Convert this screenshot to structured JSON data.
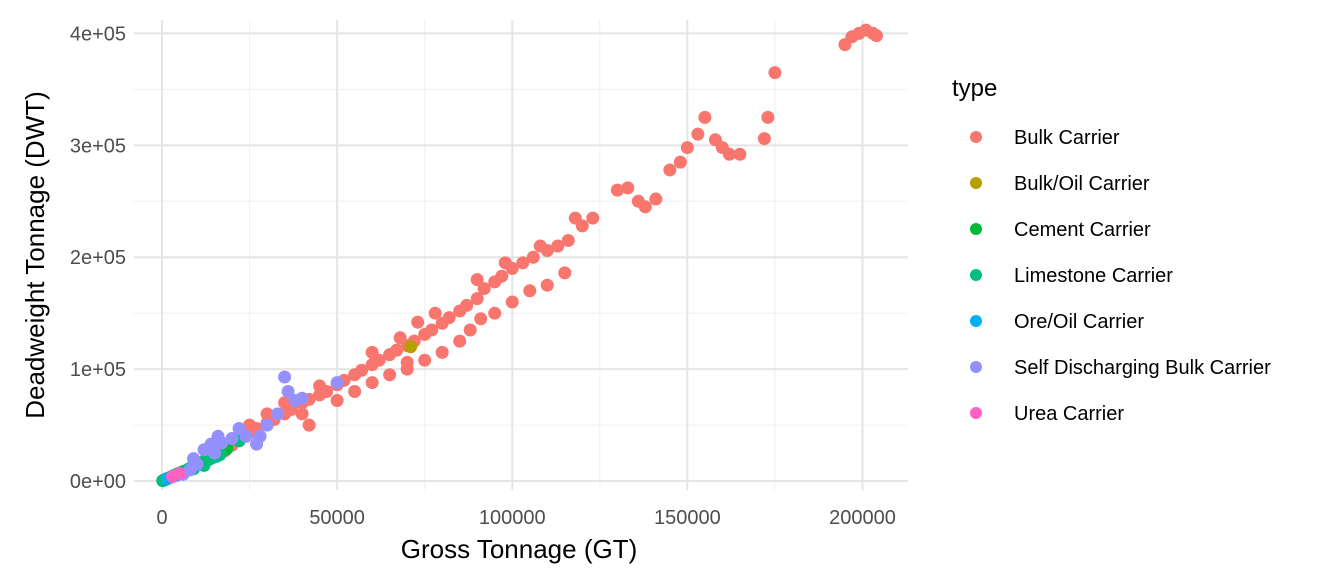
{
  "chart_data": {
    "type": "scatter",
    "title": "",
    "xlabel": "Gross Tonnage (GT)",
    "ylabel": "Deadweight Tonnage (DWT)",
    "xlim": [
      -8000,
      213000
    ],
    "ylim": [
      -8000,
      412000
    ],
    "x_ticks": [
      0,
      50000,
      100000,
      150000,
      200000
    ],
    "x_tick_labels": [
      "0",
      "50000",
      "100000",
      "150000",
      "200000"
    ],
    "y_ticks": [
      0,
      100000,
      200000,
      300000,
      400000
    ],
    "y_tick_labels": [
      "0e+00",
      "1e+05",
      "2e+05",
      "3e+05",
      "4e+05"
    ],
    "grid": true,
    "legend": {
      "title": "type",
      "position": "right"
    },
    "series": [
      {
        "name": "Bulk Carrier",
        "color": "#F8766D",
        "points": [
          [
            500,
            800
          ],
          [
            2000,
            2800
          ],
          [
            4000,
            5500
          ],
          [
            6000,
            8500
          ],
          [
            8000,
            11000
          ],
          [
            10000,
            14500
          ],
          [
            12000,
            18000
          ],
          [
            15000,
            22000
          ],
          [
            18000,
            27000
          ],
          [
            20000,
            32000
          ],
          [
            22000,
            36000
          ],
          [
            25000,
            43000
          ],
          [
            27000,
            47000
          ],
          [
            30000,
            52000
          ],
          [
            32000,
            55000
          ],
          [
            35000,
            60000
          ],
          [
            37000,
            64000
          ],
          [
            40000,
            70000
          ],
          [
            42000,
            73000
          ],
          [
            45000,
            77000
          ],
          [
            47000,
            80000
          ],
          [
            50000,
            86000
          ],
          [
            52000,
            90000
          ],
          [
            55000,
            95000
          ],
          [
            57000,
            99000
          ],
          [
            60000,
            104000
          ],
          [
            62000,
            108000
          ],
          [
            65000,
            113000
          ],
          [
            67000,
            117000
          ],
          [
            70000,
            121000
          ],
          [
            72000,
            125000
          ],
          [
            75000,
            131000
          ],
          [
            77000,
            135000
          ],
          [
            80000,
            141000
          ],
          [
            82000,
            146000
          ],
          [
            85000,
            152000
          ],
          [
            87000,
            157000
          ],
          [
            90000,
            163000
          ],
          [
            92000,
            172000
          ],
          [
            95000,
            178000
          ],
          [
            97000,
            183000
          ],
          [
            100000,
            190000
          ],
          [
            103000,
            195000
          ],
          [
            106000,
            200000
          ],
          [
            110000,
            206000
          ],
          [
            113000,
            210000
          ],
          [
            116000,
            215000
          ],
          [
            120000,
            228000
          ],
          [
            123000,
            235000
          ],
          [
            130000,
            260000
          ],
          [
            133000,
            262000
          ],
          [
            136000,
            250000
          ],
          [
            138000,
            245000
          ],
          [
            141000,
            252000
          ],
          [
            145000,
            278000
          ],
          [
            148000,
            285000
          ],
          [
            150000,
            298000
          ],
          [
            153000,
            310000
          ],
          [
            155000,
            325000
          ],
          [
            158000,
            305000
          ],
          [
            160000,
            298000
          ],
          [
            162000,
            292000
          ],
          [
            165000,
            292000
          ],
          [
            172000,
            306000
          ],
          [
            173000,
            325000
          ],
          [
            175000,
            365000
          ],
          [
            195000,
            390000
          ],
          [
            197000,
            397000
          ],
          [
            199000,
            400000
          ],
          [
            201000,
            403000
          ],
          [
            203000,
            400000
          ],
          [
            204000,
            398000
          ],
          [
            30000,
            60000
          ],
          [
            40000,
            60000
          ],
          [
            42000,
            50000
          ],
          [
            50000,
            72000
          ],
          [
            55000,
            80000
          ],
          [
            60000,
            88000
          ],
          [
            65000,
            95000
          ],
          [
            70000,
            100000
          ],
          [
            75000,
            108000
          ],
          [
            80000,
            115000
          ],
          [
            85000,
            125000
          ],
          [
            88000,
            135000
          ],
          [
            91000,
            145000
          ],
          [
            95000,
            150000
          ],
          [
            100000,
            160000
          ],
          [
            105000,
            170000
          ],
          [
            110000,
            175000
          ],
          [
            115000,
            186000
          ],
          [
            73000,
            142000
          ],
          [
            78000,
            150000
          ],
          [
            90000,
            180000
          ],
          [
            98000,
            195000
          ],
          [
            108000,
            210000
          ],
          [
            118000,
            235000
          ],
          [
            20000,
            38000
          ],
          [
            25000,
            50000
          ],
          [
            35000,
            70000
          ],
          [
            45000,
            85000
          ],
          [
            60000,
            115000
          ],
          [
            70000,
            106000
          ],
          [
            68000,
            128000
          ]
        ]
      },
      {
        "name": "Bulk/Oil Carrier",
        "color": "#B79F00",
        "points": [
          [
            71000,
            120000
          ],
          [
            12000,
            18000
          ],
          [
            3000,
            4500
          ]
        ]
      },
      {
        "name": "Cement Carrier",
        "color": "#00BA38",
        "points": [
          [
            1000,
            1500
          ],
          [
            3000,
            4000
          ],
          [
            5000,
            7000
          ],
          [
            8000,
            11000
          ],
          [
            12000,
            17000
          ],
          [
            15000,
            22000
          ],
          [
            17000,
            26000
          ],
          [
            18500,
            29000
          ]
        ]
      },
      {
        "name": "Limestone Carrier",
        "color": "#00BF7D",
        "points": [
          [
            200,
            300
          ],
          [
            800,
            1200
          ],
          [
            1500,
            2200
          ],
          [
            2500,
            3500
          ],
          [
            3500,
            5000
          ],
          [
            4500,
            6500
          ],
          [
            5500,
            7500
          ],
          [
            6500,
            9000
          ],
          [
            7500,
            10500
          ],
          [
            8500,
            12000
          ],
          [
            9500,
            13500
          ],
          [
            10500,
            15000
          ],
          [
            11500,
            16500
          ],
          [
            12500,
            18000
          ],
          [
            13500,
            19500
          ],
          [
            14500,
            21000
          ],
          [
            15500,
            22000
          ],
          [
            16500,
            23500
          ],
          [
            22000,
            36000
          ],
          [
            6000,
            7000
          ],
          [
            9000,
            11000
          ],
          [
            12000,
            14000
          ]
        ]
      },
      {
        "name": "Ore/Oil Carrier",
        "color": "#00B0F6",
        "points": [
          [
            1500,
            2000
          ],
          [
            4000,
            5000
          ]
        ]
      },
      {
        "name": "Self Discharging Bulk Carrier",
        "color": "#9590FF",
        "points": [
          [
            6000,
            6000
          ],
          [
            8000,
            10000
          ],
          [
            10000,
            15000
          ],
          [
            12000,
            28000
          ],
          [
            14000,
            33000
          ],
          [
            16000,
            40000
          ],
          [
            17000,
            34000
          ],
          [
            20000,
            38000
          ],
          [
            22000,
            47000
          ],
          [
            24000,
            40000
          ],
          [
            28000,
            40000
          ],
          [
            30000,
            50000
          ],
          [
            33000,
            60000
          ],
          [
            35000,
            93000
          ],
          [
            36000,
            80000
          ],
          [
            38000,
            72000
          ],
          [
            40000,
            74000
          ],
          [
            50000,
            88000
          ],
          [
            9000,
            20000
          ],
          [
            15000,
            25000
          ],
          [
            27000,
            33000
          ]
        ]
      },
      {
        "name": "Urea Carrier",
        "color": "#FF61C3",
        "points": [
          [
            3000,
            4000
          ],
          [
            5000,
            6500
          ]
        ]
      }
    ]
  }
}
